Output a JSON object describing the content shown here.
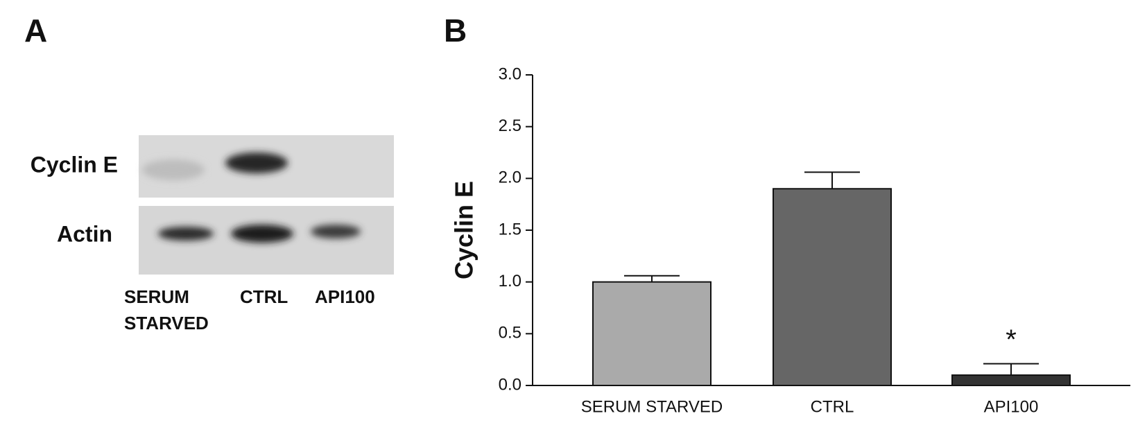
{
  "panel_a": {
    "label": "A",
    "rows": [
      "Cyclin E",
      "Actin"
    ],
    "lanes": [
      [
        "SERUM",
        "STARVED"
      ],
      [
        "CTRL"
      ],
      [
        "API100"
      ]
    ]
  },
  "chart_data": {
    "type": "bar",
    "panel_label": "B",
    "y_label": "Cyclin E",
    "categories": [
      "SERUM STARVED",
      "CTRL",
      "API100"
    ],
    "values": [
      1.0,
      1.9,
      0.1
    ],
    "errors": [
      0.06,
      0.16,
      0.11
    ],
    "colors": [
      "#aaaaaa",
      "#666666",
      "#333333"
    ],
    "annotation": "*",
    "ylim": [
      0,
      3
    ],
    "yticks": [
      {
        "value": 0,
        "label": "0.0"
      },
      {
        "value": 0.5,
        "label": "0.5"
      },
      {
        "value": 1,
        "label": "1.0"
      },
      {
        "value": 1.5,
        "label": "1.5"
      },
      {
        "value": 2,
        "label": "2.0"
      },
      {
        "value": 2.5,
        "label": "2.5"
      },
      {
        "value": 3,
        "label": "3.0"
      }
    ]
  }
}
